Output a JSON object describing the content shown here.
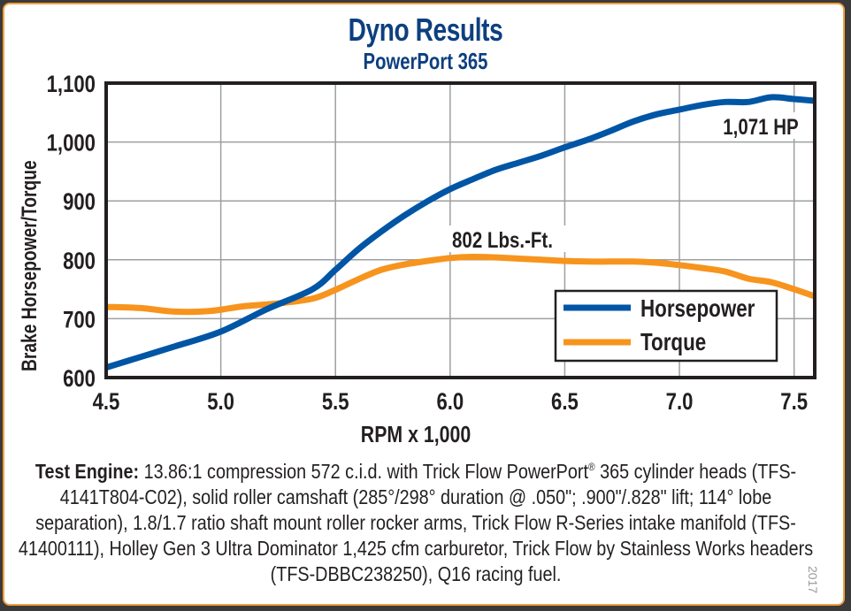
{
  "card": {
    "title": "Dyno Results",
    "subtitle": "PowerPort 365",
    "year": "2017"
  },
  "caption": {
    "lead": "Test Engine:",
    "text_1": " 13.86:1 compression 572 c.i.d. with Trick Flow PowerPort",
    "registered": "®",
    "text_2": " 365 cylinder heads (TFS-4141T804-C02), solid roller camshaft (285°/298° duration @ .050\"; .900\"/.828\" lift; 114° lobe separation), 1.8/1.7 ratio shaft mount roller rocker arms, Trick Flow R-Series intake manifold (TFS-41400111), Holley Gen 3 Ultra Dominator 1,425 cfm carburetor, Trick Flow by Stainless Works headers (TFS-DBBC238250), Q16 racing fuel."
  },
  "chart_data": {
    "type": "line",
    "title": "Dyno Results",
    "subtitle": "PowerPort 365",
    "xlabel": "RPM x 1,000",
    "ylabel": "Brake Horsepower/Torque",
    "xlim": [
      4.5,
      7.59
    ],
    "ylim": [
      600,
      1100
    ],
    "grid": true,
    "legend_position": "bottom-right",
    "xticks": [
      4.5,
      5.0,
      5.5,
      6.0,
      6.5,
      7.0,
      7.5
    ],
    "xtick_labels": [
      "4.5",
      "5.0",
      "5.5",
      "6.0",
      "6.5",
      "7.0",
      "7.5"
    ],
    "yticks": [
      600,
      700,
      800,
      900,
      1000,
      1100
    ],
    "ytick_labels": [
      "600",
      "700",
      "800",
      "900",
      "1,000",
      "1,100"
    ],
    "series": [
      {
        "name": "Horsepower",
        "color": "#0055a5",
        "x": [
          4.5,
          4.65,
          4.8,
          5.0,
          5.2,
          5.4,
          5.5,
          5.6,
          5.7,
          5.8,
          5.9,
          6.0,
          6.1,
          6.2,
          6.3,
          6.4,
          6.5,
          6.6,
          6.7,
          6.8,
          6.9,
          7.0,
          7.1,
          7.2,
          7.3,
          7.4,
          7.5,
          7.59
        ],
        "values": [
          617,
          635,
          653,
          678,
          716,
          750,
          783,
          818,
          848,
          875,
          899,
          920,
          937,
          953,
          965,
          977,
          991,
          1004,
          1019,
          1035,
          1047,
          1055,
          1063,
          1068,
          1068,
          1076,
          1073,
          1070
        ]
      },
      {
        "name": "Torque",
        "color": "#f7941d",
        "x": [
          4.5,
          4.65,
          4.8,
          4.95,
          5.1,
          5.25,
          5.4,
          5.5,
          5.6,
          5.7,
          5.8,
          5.9,
          6.0,
          6.1,
          6.2,
          6.3,
          6.4,
          6.5,
          6.6,
          6.7,
          6.8,
          6.9,
          7.0,
          7.1,
          7.2,
          7.3,
          7.4,
          7.5,
          7.59
        ],
        "values": [
          720,
          718,
          712,
          713,
          721,
          726,
          734,
          749,
          767,
          783,
          792,
          798,
          803,
          805,
          804,
          802,
          800,
          798,
          797,
          797,
          797,
          795,
          791,
          786,
          780,
          768,
          762,
          750,
          738
        ]
      }
    ],
    "annotations": [
      {
        "text": "1,071 HP",
        "series": "Horsepower",
        "x": 7.4,
        "y": 1071
      },
      {
        "text": "802 Lbs.-Ft.",
        "series": "Torque",
        "x": 6.1,
        "y": 802
      }
    ]
  }
}
